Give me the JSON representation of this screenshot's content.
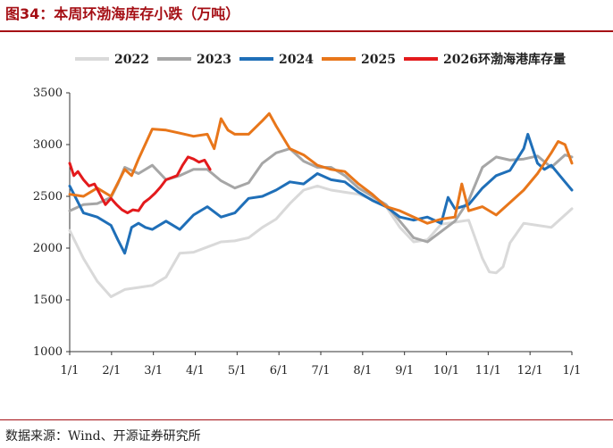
{
  "header": {
    "title": "图34：本周环渤海库存小跌（万吨）"
  },
  "footer": {
    "source": "数据来源：Wind、开源证券研究所"
  },
  "chart_data": {
    "type": "line",
    "title": "",
    "xlabel": "",
    "ylabel": "",
    "ylim": [
      1000,
      3500
    ],
    "y_ticks": [
      1000,
      1500,
      2000,
      2500,
      3000,
      3500
    ],
    "x_ticks": [
      "1/1",
      "2/1",
      "3/1",
      "4/1",
      "5/1",
      "6/1",
      "7/1",
      "8/1",
      "9/1",
      "10/1",
      "11/1",
      "12/1",
      "1/1"
    ],
    "x_unit": "day_of_year",
    "xlim": [
      0,
      365
    ],
    "grid": false,
    "legend_position": "top",
    "colors": {
      "2022": "#d9d9d9",
      "2023": "#a6a6a6",
      "2024": "#1f6fb8",
      "2025": "#e8761a",
      "2026": "#e31a1c"
    },
    "series": [
      {
        "name": "2022",
        "color": "#d9d9d9",
        "x": [
          0,
          10,
          20,
          30,
          40,
          50,
          60,
          70,
          80,
          90,
          100,
          110,
          120,
          130,
          140,
          150,
          160,
          170,
          180,
          190,
          200,
          210,
          220,
          230,
          240,
          250,
          260,
          270,
          280,
          290,
          300,
          305,
          310,
          315,
          320,
          330,
          340,
          350,
          360,
          365
        ],
        "y": [
          2170,
          1900,
          1680,
          1530,
          1600,
          1620,
          1640,
          1720,
          1950,
          1960,
          2010,
          2060,
          2070,
          2100,
          2200,
          2280,
          2430,
          2560,
          2600,
          2560,
          2540,
          2520,
          2470,
          2400,
          2200,
          2060,
          2080,
          2230,
          2250,
          2270,
          1900,
          1770,
          1760,
          1820,
          2050,
          2240,
          2220,
          2200,
          2320,
          2380
        ]
      },
      {
        "name": "2023",
        "color": "#a6a6a6",
        "x": [
          0,
          10,
          20,
          30,
          35,
          40,
          50,
          60,
          70,
          80,
          90,
          100,
          110,
          120,
          130,
          140,
          150,
          160,
          170,
          180,
          190,
          200,
          210,
          220,
          230,
          240,
          250,
          260,
          270,
          280,
          290,
          300,
          310,
          320,
          330,
          340,
          350,
          360,
          365
        ],
        "y": [
          2360,
          2420,
          2430,
          2490,
          2620,
          2780,
          2720,
          2800,
          2660,
          2700,
          2760,
          2760,
          2650,
          2580,
          2630,
          2820,
          2920,
          2960,
          2840,
          2780,
          2780,
          2700,
          2580,
          2500,
          2420,
          2260,
          2100,
          2060,
          2160,
          2260,
          2460,
          2780,
          2880,
          2850,
          2860,
          2890,
          2780,
          2900,
          2880
        ]
      },
      {
        "name": "2024",
        "color": "#1f6fb8",
        "x": [
          0,
          10,
          20,
          30,
          35,
          40,
          45,
          50,
          55,
          60,
          70,
          80,
          90,
          100,
          110,
          120,
          130,
          140,
          150,
          160,
          170,
          180,
          190,
          200,
          210,
          220,
          230,
          240,
          250,
          260,
          270,
          275,
          280,
          290,
          300,
          310,
          320,
          330,
          333,
          340,
          345,
          350,
          360,
          365
        ],
        "y": [
          2600,
          2340,
          2300,
          2220,
          2080,
          1950,
          2200,
          2240,
          2200,
          2180,
          2260,
          2180,
          2320,
          2400,
          2300,
          2340,
          2480,
          2500,
          2560,
          2640,
          2620,
          2720,
          2660,
          2640,
          2540,
          2460,
          2400,
          2300,
          2270,
          2300,
          2240,
          2490,
          2380,
          2420,
          2580,
          2700,
          2750,
          2960,
          3100,
          2820,
          2760,
          2800,
          2640,
          2560
        ]
      },
      {
        "name": "2025",
        "color": "#e8761a",
        "x": [
          0,
          10,
          20,
          30,
          40,
          45,
          50,
          60,
          70,
          80,
          90,
          100,
          105,
          110,
          115,
          120,
          130,
          140,
          145,
          150,
          160,
          170,
          180,
          190,
          200,
          210,
          220,
          230,
          240,
          250,
          260,
          270,
          280,
          285,
          290,
          300,
          310,
          320,
          330,
          340,
          350,
          355,
          360,
          365
        ],
        "y": [
          2520,
          2500,
          2580,
          2500,
          2760,
          2700,
          2860,
          3150,
          3140,
          3110,
          3080,
          3100,
          2960,
          3250,
          3140,
          3100,
          3100,
          3230,
          3300,
          3180,
          2960,
          2900,
          2800,
          2760,
          2740,
          2620,
          2520,
          2400,
          2360,
          2300,
          2240,
          2280,
          2300,
          2620,
          2360,
          2400,
          2320,
          2440,
          2560,
          2720,
          2920,
          3030,
          3000,
          2820
        ]
      },
      {
        "name": "2026环渤海港库存量",
        "color": "#e31a1c",
        "x": [
          0,
          3,
          6,
          10,
          14,
          18,
          22,
          26,
          30,
          34,
          38,
          42,
          46,
          50,
          54,
          58,
          62,
          66,
          70,
          74,
          78,
          82,
          86,
          90,
          94,
          98,
          102
        ],
        "y": [
          2820,
          2700,
          2740,
          2660,
          2600,
          2620,
          2520,
          2420,
          2480,
          2420,
          2370,
          2340,
          2370,
          2360,
          2440,
          2480,
          2530,
          2590,
          2660,
          2680,
          2700,
          2800,
          2880,
          2860,
          2830,
          2850,
          2760
        ]
      }
    ]
  }
}
